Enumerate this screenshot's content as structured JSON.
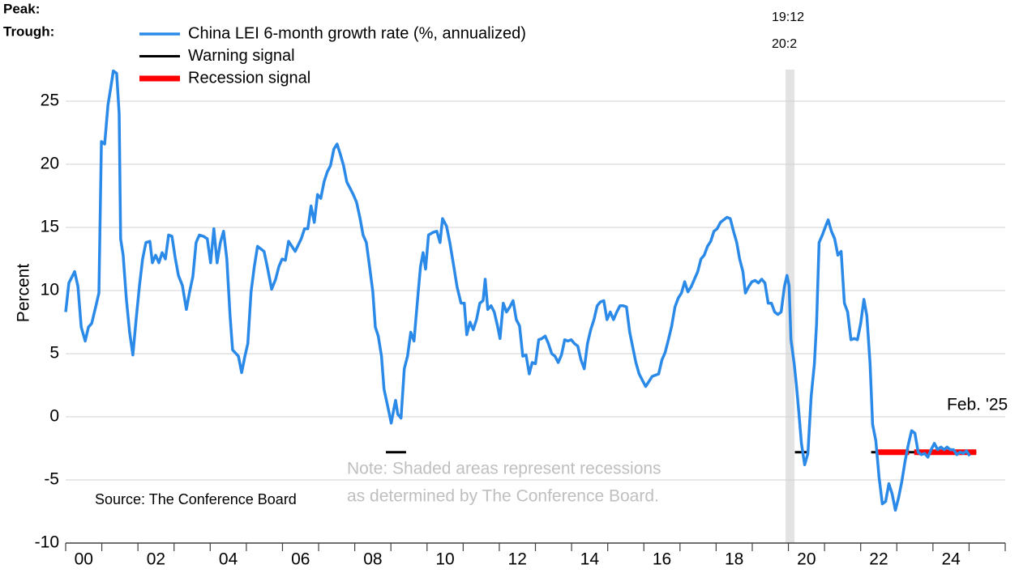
{
  "chart_data": {
    "type": "line",
    "y_label": "Percent",
    "source": "Source: The Conference Board",
    "note": [
      "Note: Shaded areas represent recessions",
      "as determined by The Conference Board."
    ],
    "peak_label": "Peak:",
    "trough_label": "Trough:",
    "end_label": "Feb. '25",
    "recessions": [
      {
        "peak": "19:12",
        "trough": "20:2",
        "start": 2019.92,
        "end": 2020.17
      }
    ],
    "xlim": [
      2000,
      2026
    ],
    "xticks": [
      {
        "value": 2000.5,
        "label": "00"
      },
      {
        "value": 2002.5,
        "label": "02"
      },
      {
        "value": 2004.5,
        "label": "04"
      },
      {
        "value": 2006.5,
        "label": "06"
      },
      {
        "value": 2008.5,
        "label": "08"
      },
      {
        "value": 2010.5,
        "label": "10"
      },
      {
        "value": 2012.5,
        "label": "12"
      },
      {
        "value": 2014.5,
        "label": "14"
      },
      {
        "value": 2016.5,
        "label": "16"
      },
      {
        "value": 2018.5,
        "label": "18"
      },
      {
        "value": 2020.5,
        "label": "20"
      },
      {
        "value": 2022.5,
        "label": "22"
      },
      {
        "value": 2024.5,
        "label": "24"
      }
    ],
    "ylim": [
      -10,
      27.5
    ],
    "yticks": [
      -10,
      -5,
      0,
      5,
      10,
      15,
      20,
      25
    ],
    "grid": true,
    "legend": "top-left",
    "series": [
      {
        "name": "China LEI 6-month growth rate (%, annualized)",
        "color": "#2b8ae8",
        "width": 3.5,
        "x": [
          2000.0,
          2000.09,
          2000.25,
          2000.34,
          2000.43,
          2000.54,
          2000.63,
          2000.72,
          2000.83,
          2000.92,
          2000.99,
          2001.08,
          2001.17,
          2001.26,
          2001.32,
          2001.41,
          2001.48,
          2001.52,
          2001.59,
          2001.68,
          2001.77,
          2001.86,
          2001.95,
          2002.04,
          2002.13,
          2002.22,
          2002.33,
          2002.4,
          2002.49,
          2002.58,
          2002.67,
          2002.76,
          2002.85,
          2002.94,
          2003.03,
          2003.12,
          2003.23,
          2003.34,
          2003.43,
          2003.52,
          2003.61,
          2003.7,
          2003.81,
          2003.92,
          2004.01,
          2004.1,
          2004.19,
          2004.28,
          2004.37,
          2004.46,
          2004.55,
          2004.62,
          2004.78,
          2004.87,
          2004.96,
          2005.04,
          2005.13,
          2005.22,
          2005.31,
          2005.49,
          2005.58,
          2005.7,
          2005.81,
          2005.9,
          2005.99,
          2006.08,
          2006.17,
          2006.35,
          2006.52,
          2006.61,
          2006.7,
          2006.79,
          2006.88,
          2006.97,
          2007.06,
          2007.15,
          2007.24,
          2007.33,
          2007.42,
          2007.51,
          2007.6,
          2007.69,
          2007.78,
          2007.87,
          2007.96,
          2008.05,
          2008.14,
          2008.23,
          2008.32,
          2008.41,
          2008.5,
          2008.57,
          2008.65,
          2008.74,
          2008.81,
          2008.9,
          2008.95,
          2009.01,
          2009.08,
          2009.13,
          2009.19,
          2009.28,
          2009.37,
          2009.46,
          2009.55,
          2009.64,
          2009.73,
          2009.82,
          2009.89,
          2009.96,
          2010.04,
          2010.16,
          2010.27,
          2010.36,
          2010.43,
          2010.54,
          2010.63,
          2010.74,
          2010.83,
          2010.94,
          2011.03,
          2011.1,
          2011.19,
          2011.28,
          2011.37,
          2011.46,
          2011.55,
          2011.61,
          2011.68,
          2011.77,
          2011.86,
          2011.95,
          2012.02,
          2012.11,
          2012.2,
          2012.29,
          2012.38,
          2012.47,
          2012.56,
          2012.65,
          2012.74,
          2012.83,
          2012.91,
          2013.0,
          2013.09,
          2013.18,
          2013.27,
          2013.36,
          2013.45,
          2013.54,
          2013.63,
          2013.72,
          2013.81,
          2013.9,
          2013.99,
          2014.08,
          2014.17,
          2014.26,
          2014.35,
          2014.44,
          2014.53,
          2014.62,
          2014.71,
          2014.8,
          2014.89,
          2014.98,
          2015.07,
          2015.16,
          2015.25,
          2015.34,
          2015.43,
          2015.52,
          2015.61,
          2015.7,
          2015.78,
          2015.87,
          2015.96,
          2016.05,
          2016.14,
          2016.23,
          2016.41,
          2016.5,
          2016.59,
          2016.68,
          2016.77,
          2016.86,
          2016.95,
          2017.04,
          2017.13,
          2017.22,
          2017.31,
          2017.4,
          2017.49,
          2017.58,
          2017.67,
          2017.76,
          2017.85,
          2017.94,
          2018.03,
          2018.12,
          2018.21,
          2018.3,
          2018.39,
          2018.48,
          2018.57,
          2018.65,
          2018.74,
          2018.81,
          2018.9,
          2018.99,
          2019.08,
          2019.17,
          2019.26,
          2019.35,
          2019.44,
          2019.53,
          2019.62,
          2019.71,
          2019.8,
          2019.89,
          2019.96,
          2020.02,
          2020.07,
          2020.16,
          2020.22,
          2020.29,
          2020.36,
          2020.45,
          2020.54,
          2020.63,
          2020.72,
          2020.78,
          2020.85,
          2020.94,
          2021.03,
          2021.1,
          2021.19,
          2021.28,
          2021.37,
          2021.46,
          2021.55,
          2021.64,
          2021.73,
          2021.82,
          2021.91,
          2022.0,
          2022.09,
          2022.17,
          2022.26,
          2022.33,
          2022.42,
          2022.51,
          2022.6,
          2022.69,
          2022.78,
          2022.87,
          2022.96,
          2023.05,
          2023.14,
          2023.23,
          2023.32,
          2023.41,
          2023.5,
          2023.59,
          2023.68,
          2023.77,
          2023.86,
          2023.95,
          2024.04,
          2024.13,
          2024.22,
          2024.31,
          2024.39,
          2024.48,
          2024.57,
          2024.66,
          2024.75,
          2024.84,
          2024.93,
          2025.02
        ],
        "values": [
          8.3,
          10.6,
          11.5,
          10.3,
          7.1,
          6.0,
          7.1,
          7.4,
          8.7,
          9.8,
          21.8,
          21.6,
          24.7,
          26.3,
          27.4,
          27.2,
          24.0,
          14.1,
          12.8,
          9.3,
          6.7,
          4.9,
          7.7,
          10.3,
          12.5,
          13.8,
          13.9,
          12.2,
          12.8,
          12.2,
          13.0,
          12.5,
          14.4,
          14.3,
          12.6,
          11.2,
          10.4,
          8.5,
          9.9,
          11.1,
          13.8,
          14.4,
          14.3,
          14.1,
          12.2,
          14.9,
          12.2,
          13.8,
          14.7,
          12.5,
          8.0,
          5.3,
          4.8,
          3.5,
          4.8,
          5.8,
          9.9,
          11.9,
          13.5,
          13.1,
          11.9,
          10.1,
          10.9,
          11.9,
          12.5,
          12.4,
          13.9,
          13.1,
          14.1,
          14.9,
          14.9,
          16.7,
          15.4,
          17.6,
          17.3,
          18.6,
          19.4,
          19.9,
          21.2,
          21.6,
          20.8,
          19.9,
          18.6,
          18.1,
          17.6,
          17.0,
          15.8,
          14.4,
          13.8,
          11.9,
          9.9,
          7.1,
          6.4,
          4.8,
          2.2,
          1.0,
          0.3,
          -0.5,
          0.6,
          1.3,
          0.2,
          -0.1,
          3.8,
          4.8,
          6.7,
          6.0,
          9.0,
          11.9,
          13.0,
          11.7,
          14.4,
          14.6,
          14.7,
          13.8,
          15.7,
          15.1,
          13.8,
          11.9,
          10.3,
          9.0,
          9.0,
          6.5,
          7.5,
          6.9,
          7.7,
          9.0,
          9.2,
          10.9,
          8.5,
          8.8,
          8.3,
          7.2,
          6.2,
          9.0,
          8.3,
          8.7,
          9.2,
          7.7,
          7.2,
          4.8,
          4.9,
          3.4,
          4.3,
          4.2,
          6.1,
          6.2,
          6.4,
          5.8,
          5.0,
          4.8,
          4.3,
          4.9,
          6.1,
          6.0,
          6.1,
          5.8,
          5.6,
          4.5,
          3.8,
          5.8,
          6.9,
          7.7,
          8.8,
          9.1,
          9.2,
          7.7,
          8.3,
          7.7,
          8.3,
          8.8,
          8.8,
          8.7,
          6.7,
          5.4,
          4.3,
          3.4,
          2.9,
          2.4,
          2.8,
          3.2,
          3.4,
          4.5,
          5.1,
          6.1,
          7.2,
          8.7,
          9.4,
          9.8,
          10.7,
          9.9,
          10.3,
          10.9,
          11.5,
          12.5,
          12.8,
          13.5,
          13.9,
          14.7,
          14.9,
          15.4,
          15.6,
          15.8,
          15.7,
          14.7,
          13.8,
          12.5,
          11.5,
          9.8,
          10.3,
          10.7,
          10.8,
          10.6,
          10.9,
          10.6,
          9.0,
          9.0,
          8.3,
          8.1,
          8.3,
          10.3,
          11.2,
          10.4,
          6.1,
          4.2,
          2.6,
          0.3,
          -2.1,
          -3.8,
          -2.9,
          1.6,
          4.2,
          7.4,
          13.8,
          14.4,
          15.1,
          15.6,
          14.7,
          14.1,
          12.8,
          13.1,
          9.0,
          8.3,
          6.1,
          6.2,
          6.1,
          7.4,
          9.3,
          8.0,
          4.2,
          -0.6,
          -1.9,
          -4.8,
          -6.9,
          -6.7,
          -5.3,
          -6.1,
          -7.4,
          -6.4,
          -5.1,
          -3.5,
          -2.2,
          -1.1,
          -1.3,
          -2.8,
          -3.0,
          -2.9,
          -3.2,
          -2.6,
          -2.1,
          -2.6,
          -2.4,
          -2.6,
          -2.4,
          -2.6,
          -2.6,
          -3.0,
          -2.8,
          -2.9,
          -2.7,
          -3.1
        ]
      },
      {
        "name": "Warning signal",
        "color": "#000000",
        "width": 3,
        "x": [
          2008.86,
          2009.42,
          2009.5,
          2020.18,
          2020.54,
          2020.6,
          2022.29,
          2025.2
        ],
        "values": [
          -2.8,
          -2.8,
          null,
          -2.8,
          -2.8,
          null,
          -2.8,
          -2.8
        ]
      },
      {
        "name": "Recession signal",
        "color": "#ff0000",
        "width": 7,
        "x": [
          2022.47,
          2023.34,
          2023.4,
          2023.48,
          2025.2
        ],
        "values": [
          -2.8,
          -2.8,
          null,
          -2.8,
          -2.8
        ]
      }
    ]
  }
}
